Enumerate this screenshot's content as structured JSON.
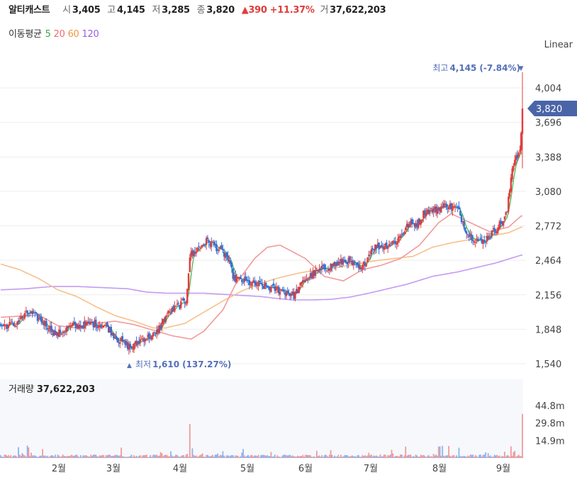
{
  "header": {
    "name": "알티캐스트",
    "open_label": "시",
    "open": "3,405",
    "high_label": "고",
    "high": "4,145",
    "low_label": "저",
    "low": "3,285",
    "close_label": "종",
    "close": "3,820",
    "change": "▲390",
    "change_pct": "+11.37%",
    "volume_label": "거",
    "volume": "37,622,203"
  },
  "ma_legend": {
    "label": "이동평균",
    "items": [
      {
        "text": "5",
        "color": "#3fa34d"
      },
      {
        "text": "20",
        "color": "#ef6b6b"
      },
      {
        "text": "60",
        "color": "#f0963f"
      },
      {
        "text": "120",
        "color": "#9b5de5"
      }
    ]
  },
  "scale_label": "Linear",
  "colors": {
    "up": "#e03c3c",
    "down": "#2f6fd6",
    "ma5": "#5aba5a",
    "ma20": "#f29a9a",
    "ma60": "#f7c08c",
    "ma120": "#c39bf2",
    "marker": "#5470b8",
    "grid": "#eeeeee"
  },
  "chart_data": {
    "type": "candlestick",
    "y_axis": {
      "ticks": [
        4004,
        3696,
        3388,
        3080,
        2772,
        2464,
        2156,
        1848,
        1540
      ],
      "tick_labels": [
        "4,004",
        "3,696",
        "3,388",
        "3,080",
        "2,772",
        "2,464",
        "2,156",
        "1,848",
        "1,540"
      ],
      "range": [
        1480,
        4300
      ]
    },
    "x_axis": {
      "ticks": [
        "2월",
        "3월",
        "4월",
        "5월",
        "6월",
        "7월",
        "8월",
        "9월"
      ]
    },
    "current_price": {
      "value": 3820,
      "label": "3,820"
    },
    "high_marker": {
      "label": "최고",
      "value": "4,145",
      "pct": "(-7.84%)"
    },
    "low_marker": {
      "label": "최저",
      "value": "1,610",
      "pct": "(137.27%)"
    },
    "volume": {
      "title": "거래량",
      "value": "37,622,203",
      "ticks": [
        "44.8m",
        "29.8m",
        "14.9m"
      ],
      "tick_values": [
        44.8,
        29.8,
        14.9
      ],
      "max": 52
    },
    "ma_anchors": {
      "ma20": [
        [
          0,
          1955
        ],
        [
          30,
          1975
        ],
        [
          45,
          1880
        ],
        [
          60,
          1860
        ],
        [
          75,
          1900
        ],
        [
          90,
          1920
        ],
        [
          105,
          1890
        ],
        [
          120,
          1840
        ],
        [
          135,
          1790
        ],
        [
          150,
          1760
        ],
        [
          160,
          1830
        ],
        [
          175,
          2020
        ],
        [
          185,
          2250
        ],
        [
          200,
          2480
        ],
        [
          210,
          2580
        ],
        [
          220,
          2600
        ],
        [
          230,
          2540
        ],
        [
          240,
          2480
        ],
        [
          255,
          2320
        ],
        [
          270,
          2280
        ],
        [
          285,
          2380
        ],
        [
          300,
          2420
        ],
        [
          315,
          2480
        ],
        [
          330,
          2600
        ],
        [
          345,
          2800
        ],
        [
          355,
          2880
        ],
        [
          370,
          2800
        ],
        [
          385,
          2720
        ],
        [
          400,
          2760
        ],
        [
          410,
          2860
        ]
      ],
      "ma60": [
        [
          0,
          2430
        ],
        [
          15,
          2380
        ],
        [
          30,
          2300
        ],
        [
          45,
          2200
        ],
        [
          60,
          2140
        ],
        [
          75,
          2050
        ],
        [
          90,
          1970
        ],
        [
          105,
          1920
        ],
        [
          120,
          1860
        ],
        [
          130,
          1860
        ],
        [
          145,
          1900
        ],
        [
          160,
          2000
        ],
        [
          175,
          2100
        ],
        [
          190,
          2190
        ],
        [
          205,
          2260
        ],
        [
          220,
          2310
        ],
        [
          235,
          2350
        ],
        [
          250,
          2380
        ],
        [
          265,
          2400
        ],
        [
          280,
          2430
        ],
        [
          295,
          2460
        ],
        [
          310,
          2480
        ],
        [
          325,
          2500
        ],
        [
          340,
          2580
        ],
        [
          355,
          2620
        ],
        [
          370,
          2650
        ],
        [
          385,
          2680
        ],
        [
          400,
          2710
        ],
        [
          410,
          2760
        ]
      ],
      "ma120": [
        [
          0,
          2200
        ],
        [
          20,
          2210
        ],
        [
          40,
          2230
        ],
        [
          60,
          2230
        ],
        [
          80,
          2220
        ],
        [
          100,
          2210
        ],
        [
          115,
          2180
        ],
        [
          130,
          2170
        ],
        [
          145,
          2170
        ],
        [
          160,
          2170
        ],
        [
          175,
          2160
        ],
        [
          190,
          2150
        ],
        [
          205,
          2140
        ],
        [
          220,
          2120
        ],
        [
          230,
          2110
        ],
        [
          245,
          2110
        ],
        [
          260,
          2115
        ],
        [
          275,
          2135
        ],
        [
          290,
          2170
        ],
        [
          305,
          2210
        ],
        [
          320,
          2250
        ],
        [
          340,
          2320
        ],
        [
          360,
          2360
        ],
        [
          375,
          2400
        ],
        [
          390,
          2440
        ],
        [
          410,
          2510
        ]
      ]
    }
  }
}
